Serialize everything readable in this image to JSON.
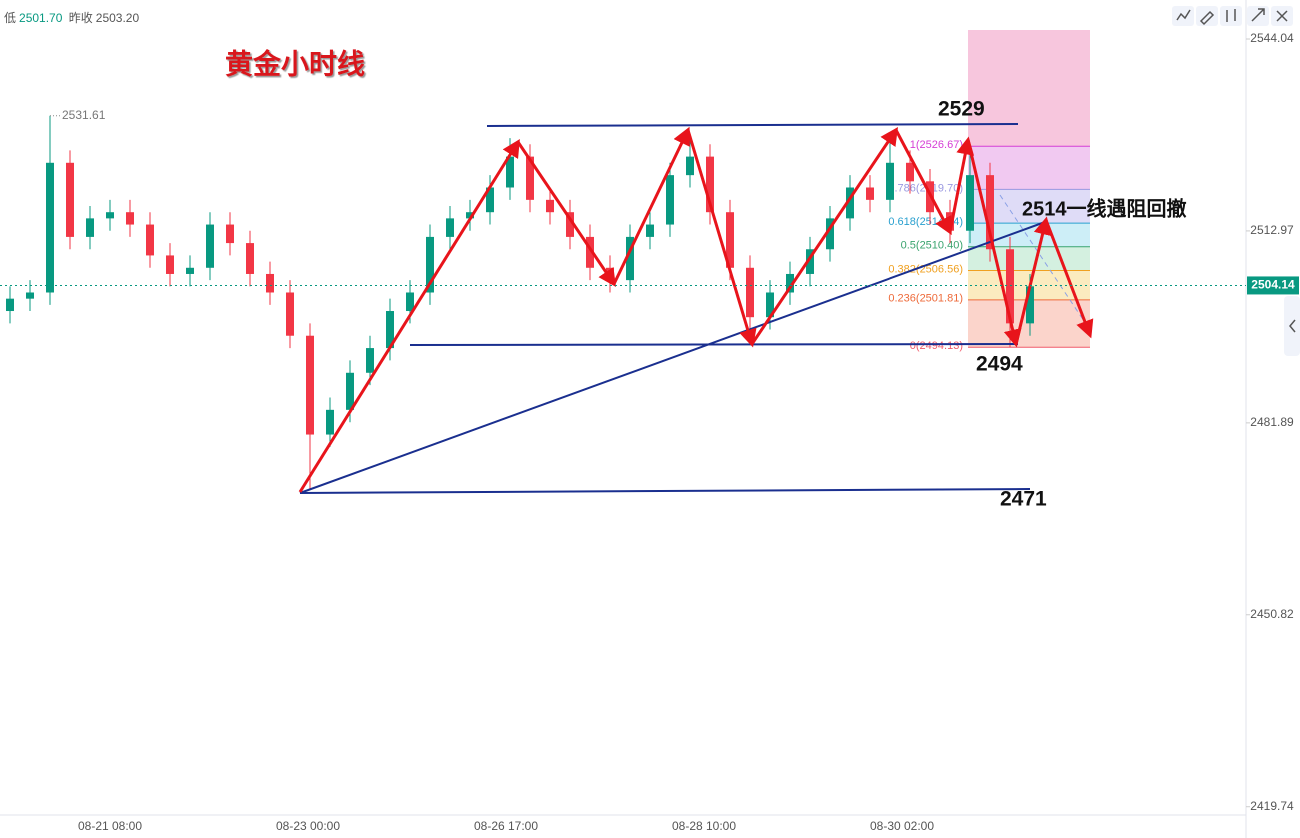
{
  "chart_data": {
    "type": "candlestick",
    "title": "黄金小时线",
    "header": {
      "low_label": "低",
      "low": "2501.70",
      "prev_close_label": "昨收",
      "prev_close": "2503.20"
    },
    "open": [
      2500,
      2502,
      2503,
      2524,
      2512,
      2515,
      2516,
      2514,
      2509,
      2506,
      2507,
      2514,
      2511,
      2506,
      2503,
      2496,
      2480,
      2484,
      2490,
      2494,
      2500,
      2503,
      2512,
      2515,
      2516,
      2520,
      2525,
      2518,
      2516,
      2512,
      2507,
      2505,
      2512,
      2514,
      2522,
      2525,
      2516,
      2507,
      2499,
      2503,
      2506,
      2510,
      2515,
      2520,
      2518,
      2524,
      2521,
      2516,
      2513,
      2522,
      2510,
      2498
    ],
    "high": [
      2504,
      2505,
      2531.61,
      2526,
      2517,
      2518,
      2518,
      2516,
      2511,
      2509,
      2516,
      2516,
      2513,
      2508,
      2505,
      2498,
      2486,
      2492,
      2496,
      2502,
      2505,
      2514,
      2517,
      2518,
      2522,
      2528,
      2527,
      2520,
      2518,
      2514,
      2509,
      2514,
      2516,
      2524,
      2528.5,
      2527,
      2518,
      2509,
      2505,
      2508,
      2512,
      2517,
      2522,
      2522,
      2528.7,
      2526,
      2523,
      2518,
      2527,
      2524,
      2512,
      2506
    ],
    "low": [
      2498,
      2500,
      2501,
      2510,
      2510,
      2513,
      2512,
      2507,
      2504,
      2504,
      2505,
      2509,
      2504,
      2501,
      2494,
      2471,
      2478,
      2482,
      2488,
      2492,
      2498,
      2501,
      2510,
      2513,
      2514,
      2518,
      2516,
      2514,
      2510,
      2505,
      2503,
      2503,
      2510,
      2512,
      2520,
      2514,
      2505,
      2494.5,
      2497,
      2501,
      2504,
      2508,
      2513,
      2516,
      2516,
      2519,
      2514,
      2511,
      2511,
      2508,
      2494.13,
      2496
    ],
    "close": [
      2502,
      2503,
      2524,
      2512,
      2515,
      2516,
      2514,
      2509,
      2506,
      2507,
      2514,
      2511,
      2506,
      2503,
      2496,
      2480,
      2484,
      2490,
      2494,
      2500,
      2503,
      2512,
      2515,
      2516,
      2520,
      2525,
      2518,
      2516,
      2512,
      2507,
      2505,
      2512,
      2514,
      2522,
      2525,
      2516,
      2507,
      2499,
      2503,
      2506,
      2510,
      2515,
      2520,
      2518,
      2524,
      2521,
      2516,
      2513,
      2522,
      2510,
      2498,
      2504
    ],
    "up_color": "#089981",
    "down_color": "#f23645",
    "last_price": 2504.14,
    "ylim": [
      2418.4,
      2545.5
    ],
    "yticks": [
      2544.04,
      2512.97,
      2481.89,
      2450.82,
      2419.74
    ],
    "xtick_labels": [
      "08-21 08:00",
      "08-23 00:00",
      "08-26 17:00",
      "08-28 10:00",
      "08-30 02:00"
    ],
    "fib_top_fill": "#f7c6dd",
    "fib_levels": [
      {
        "value": 2526.67,
        "label": "1(2526.67)",
        "color": "#d63fd6",
        "fill": "#efc3f0"
      },
      {
        "value": 2519.7,
        "label": "0.786(2519.70)",
        "color": "#9a98e0",
        "fill": "#dcd8f6"
      },
      {
        "value": 2514.24,
        "label": "0.618(2514.24)",
        "color": "#2aa0cf",
        "fill": "#c8ecf6"
      },
      {
        "value": 2510.4,
        "label": "0.5(2510.40)",
        "color": "#3aa36e",
        "fill": "#cfeedd"
      },
      {
        "value": 2506.56,
        "label": "0.382(2506.56)",
        "color": "#f0a020",
        "fill": "#fbe9b8"
      },
      {
        "value": 2501.81,
        "label": "0.236(2501.81)",
        "color": "#ee6a3a",
        "fill": "#fbcfc5"
      },
      {
        "value": 2494.13,
        "label": "0(2494.13)",
        "color": "#f05a6a",
        "fill": null
      }
    ],
    "annotations": {
      "resist_top": "2529",
      "resist_note": "2514一线遇阻回撤",
      "support_mid": "2494",
      "support_low": "2471"
    }
  }
}
